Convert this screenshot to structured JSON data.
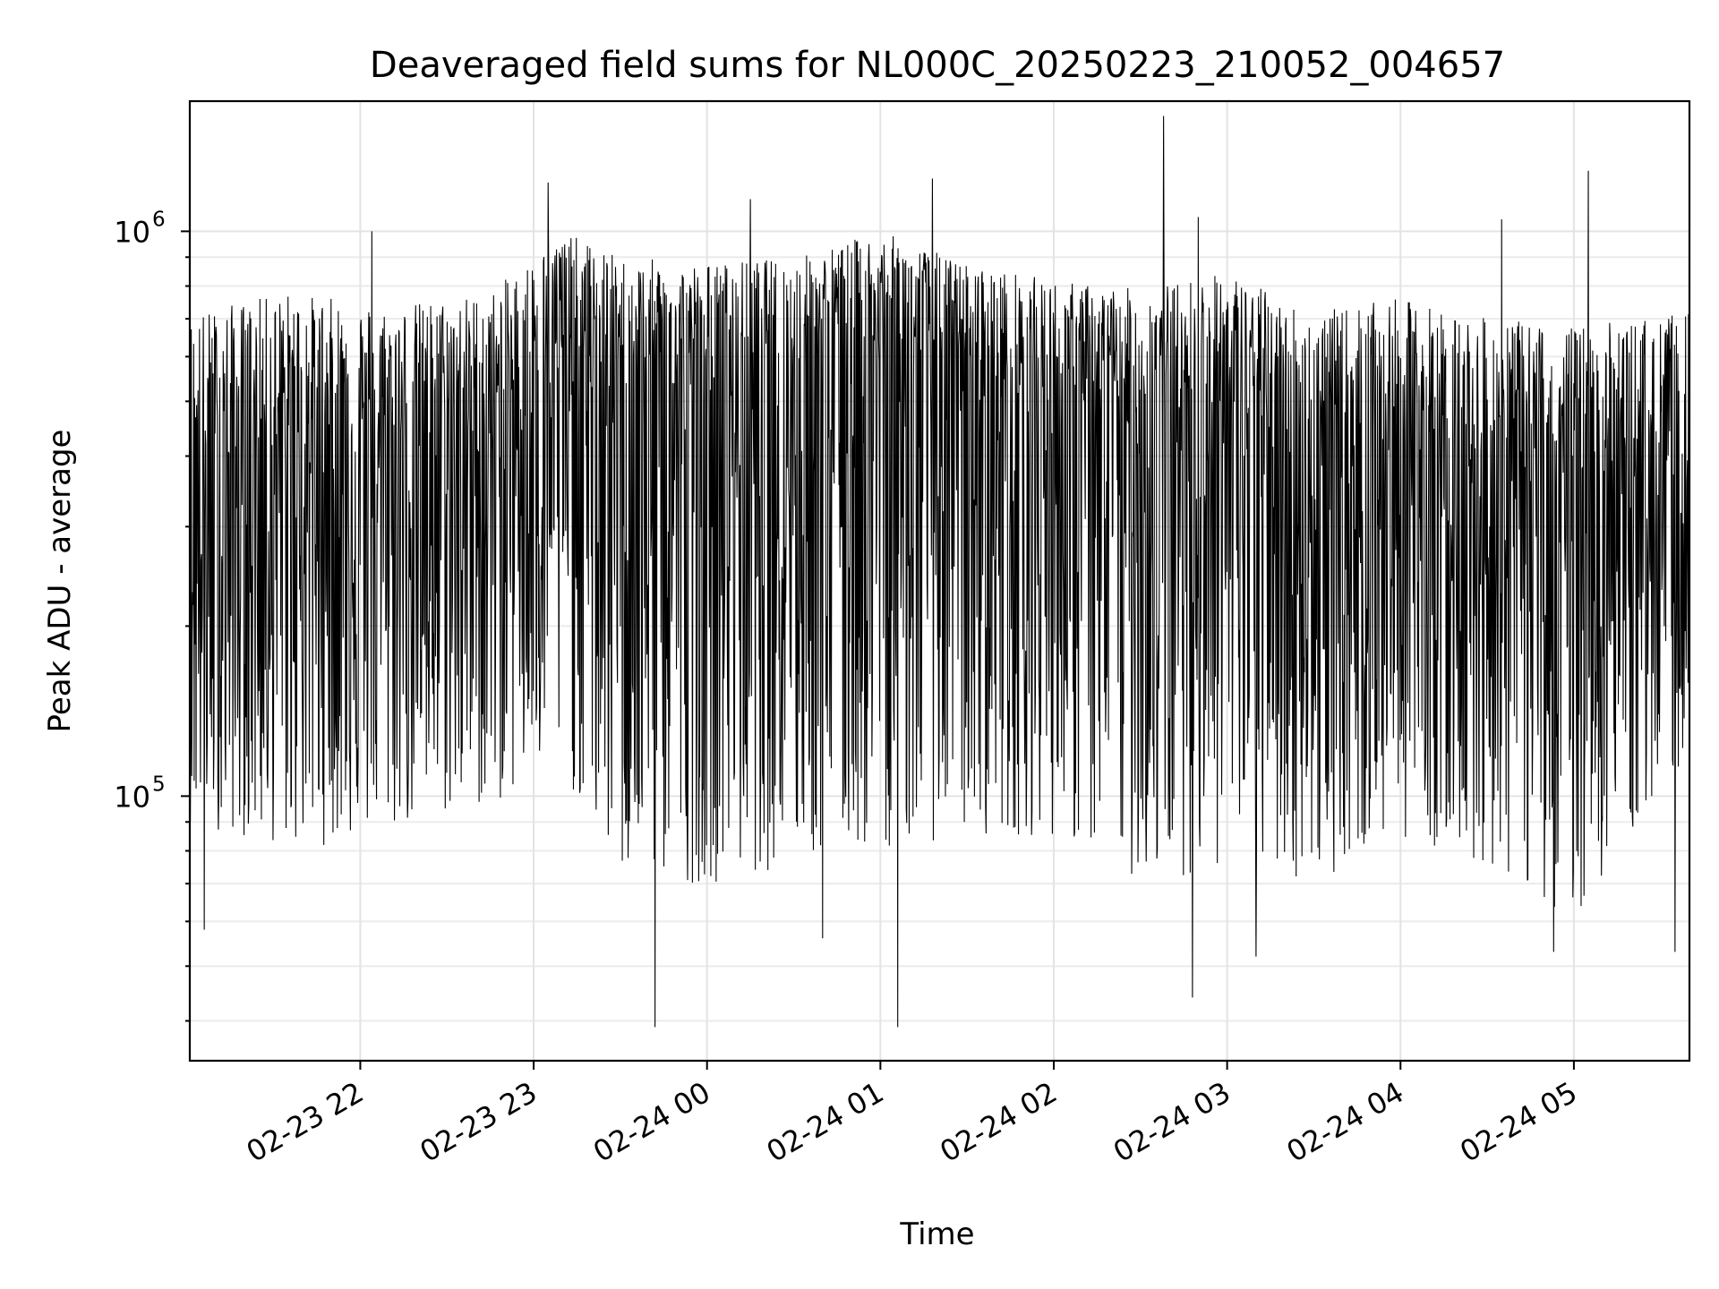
{
  "chart_data": {
    "type": "line",
    "title": "Deaveraged field sums for NL000C_20250223_210052_004657",
    "xlabel": "Time",
    "ylabel": "Peak ADU - average",
    "y_scale": "log",
    "ylim": [
      34000,
      1700000
    ],
    "xlim": [
      "2025-02-23 21:01",
      "2025-02-24 05:40"
    ],
    "grid": true,
    "line_color": "#000000",
    "x_tick_labels": [
      "02-23 22",
      "02-23 23",
      "02-24 00",
      "02-24 01",
      "02-24 02",
      "02-24 03",
      "02-24 04",
      "02-24 05"
    ],
    "x_tick_times": [
      "2025-02-23 22:00",
      "2025-02-23 23:00",
      "2025-02-24 00:00",
      "2025-02-24 01:00",
      "2025-02-24 02:00",
      "2025-02-24 03:00",
      "2025-02-24 04:00",
      "2025-02-24 05:00"
    ],
    "y_ticks": [
      {
        "value": 100000,
        "base": "10",
        "exp": "5"
      },
      {
        "value": 1000000,
        "base": "10",
        "exp": "6"
      }
    ],
    "series": [
      {
        "x": [
          "2025-02-23 21:01",
          "2025-02-23 21:35",
          "2025-02-23 22:10",
          "2025-02-23 22:45",
          "2025-02-23 23:10",
          "2025-02-23 23:30",
          "2025-02-24 00:00",
          "2025-02-24 00:30",
          "2025-02-24 01:00",
          "2025-02-24 01:30",
          "2025-02-24 02:00",
          "2025-02-24 02:30",
          "2025-02-24 03:00",
          "2025-02-24 03:30",
          "2025-02-24 04:00",
          "2025-02-24 04:30",
          "2025-02-24 05:00",
          "2025-02-24 05:40"
        ],
        "median": [
          300000,
          400000,
          380000,
          420000,
          580000,
          480000,
          480000,
          500000,
          600000,
          480000,
          470000,
          450000,
          470000,
          330000,
          390000,
          330000,
          330000,
          330000
        ],
        "upper": [
          720000,
          780000,
          740000,
          780000,
          1000000,
          900000,
          880000,
          900000,
          1000000,
          880000,
          820000,
          790000,
          850000,
          720000,
          760000,
          700000,
          680000,
          720000
        ],
        "lower": [
          90000,
          80000,
          85000,
          95000,
          110000,
          70000,
          70000,
          75000,
          80000,
          85000,
          85000,
          70000,
          75000,
          70000,
          85000,
          75000,
          60000,
          120000
        ],
        "peaks": [
          {
            "x": "2025-02-23 22:04",
            "y": 1000000
          },
          {
            "x": "2025-02-23 23:05",
            "y": 1220000
          },
          {
            "x": "2025-02-24 00:15",
            "y": 1140000
          },
          {
            "x": "2025-02-24 01:18",
            "y": 1240000
          },
          {
            "x": "2025-02-24 02:38",
            "y": 1600000
          },
          {
            "x": "2025-02-24 02:50",
            "y": 1060000
          },
          {
            "x": "2025-02-24 04:35",
            "y": 1050000
          },
          {
            "x": "2025-02-24 05:05",
            "y": 1280000
          }
        ],
        "dips": [
          {
            "x": "2025-02-23 21:06",
            "y": 58000
          },
          {
            "x": "2025-02-23 23:42",
            "y": 39000
          },
          {
            "x": "2025-02-24 00:40",
            "y": 56000
          },
          {
            "x": "2025-02-24 01:06",
            "y": 39000
          },
          {
            "x": "2025-02-24 02:48",
            "y": 44000
          },
          {
            "x": "2025-02-24 03:10",
            "y": 52000
          },
          {
            "x": "2025-02-24 04:53",
            "y": 53000
          },
          {
            "x": "2025-02-24 05:35",
            "y": 53000
          }
        ]
      }
    ]
  }
}
